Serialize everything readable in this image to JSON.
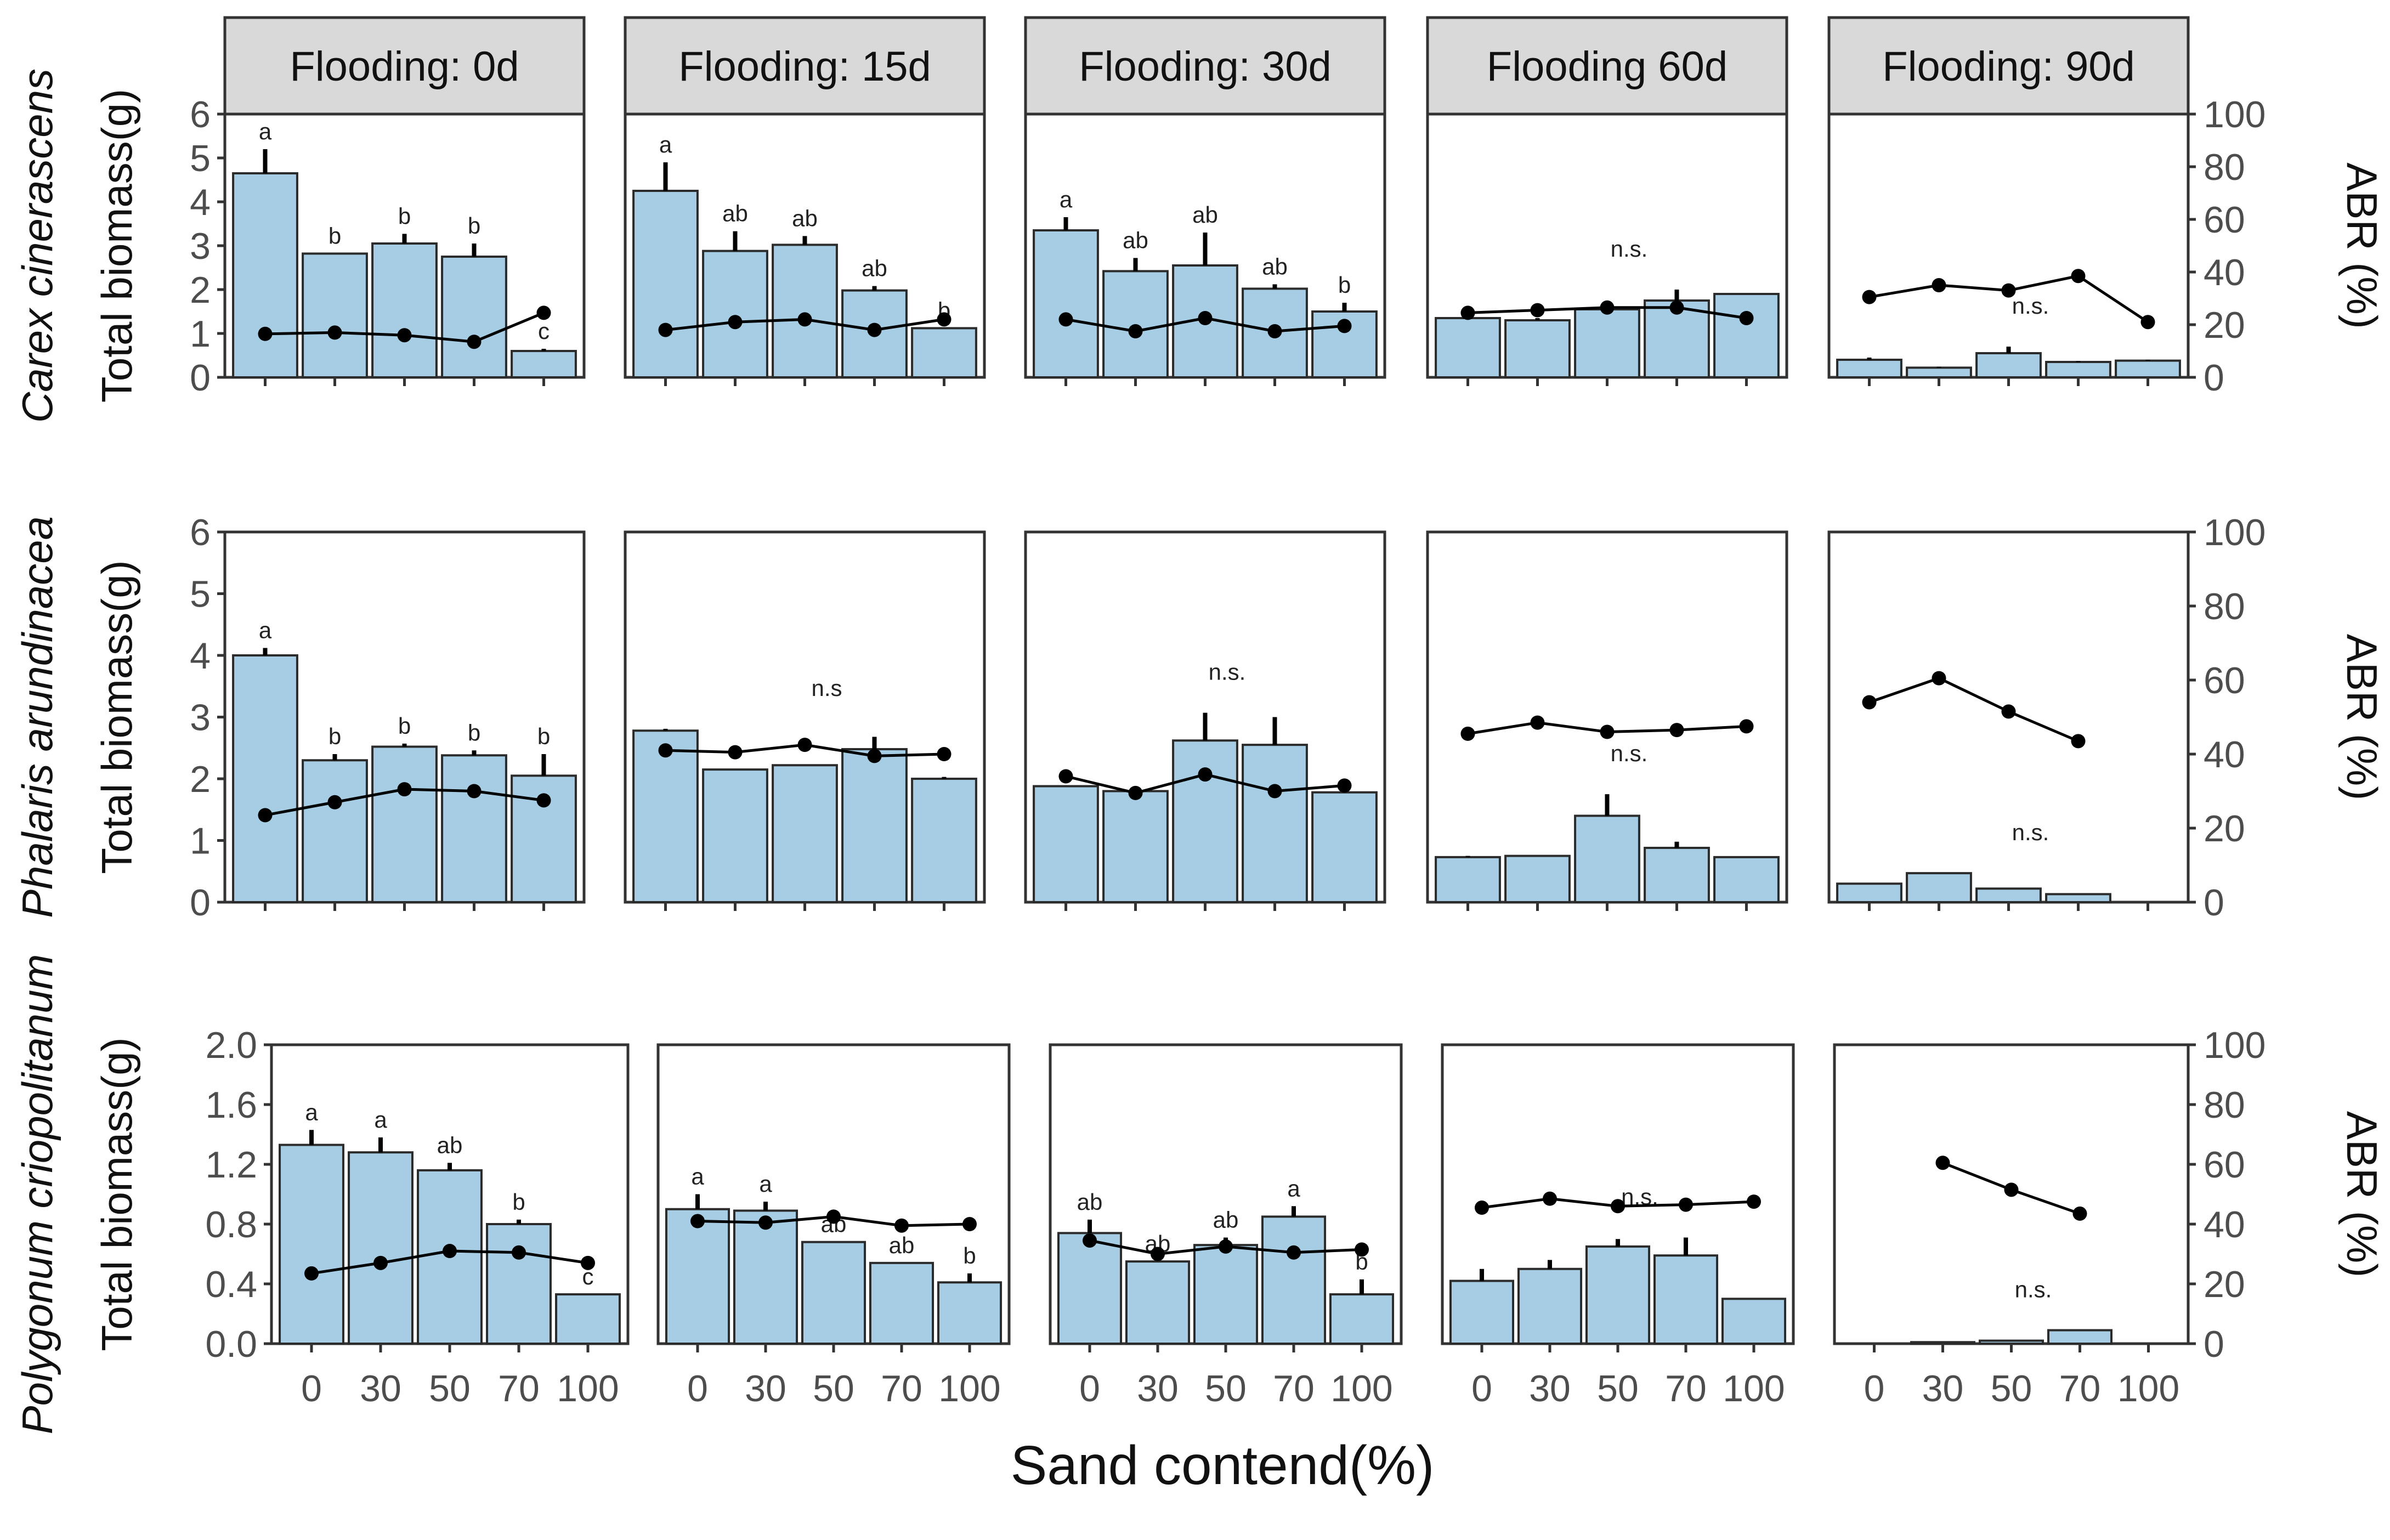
{
  "chart_data": {
    "type": "bar",
    "description_kind": "faceted bar + line chart",
    "xlabel": "Sand contend(%)",
    "categories": [
      "0",
      "30",
      "50",
      "70",
      "100"
    ],
    "colors": {
      "bar_fill": "#a6cde3",
      "bar_stroke": "#2b2b2b",
      "line": "#000000",
      "strip_fill": "#d9d9d9"
    },
    "secondary_axis": {
      "label": "ABR (%)",
      "ylim": [
        0,
        100
      ],
      "ticks": [
        0,
        20,
        40,
        60,
        80,
        100
      ]
    },
    "columns": [
      "Flooding: 0d",
      "Flooding: 15d",
      "Flooding: 30d",
      "Flooding 60d",
      "Flooding: 90d"
    ],
    "rows": [
      {
        "species": "Carex cinerascens",
        "ylabel": "Total biomass(g)",
        "ylim": [
          0,
          6
        ],
        "yticks": [
          "0",
          "1",
          "2",
          "3",
          "4",
          "5",
          "6"
        ],
        "ytick_values": [
          0,
          1,
          2,
          3,
          4,
          5,
          6
        ],
        "panels": [
          {
            "biomass": [
              4.65,
              2.82,
              3.05,
              2.75,
              0.6
            ],
            "errors": [
              0.55,
              0,
              0.22,
              0.3,
              0.05
            ],
            "sig": [
              "a",
              "b",
              "b",
              "b",
              "c"
            ],
            "abr": [
              16.5,
              17,
              16,
              13.5,
              24.5
            ]
          },
          {
            "biomass": [
              4.25,
              2.88,
              3.02,
              1.98,
              1.12
            ],
            "errors": [
              0.65,
              0.45,
              0.2,
              0.1,
              0
            ],
            "sig": [
              "a",
              "ab",
              "ab",
              "ab",
              "b"
            ],
            "abr": [
              18,
              21,
              22,
              18,
              22
            ]
          },
          {
            "biomass": [
              3.35,
              2.42,
              2.55,
              2.02,
              1.5
            ],
            "errors": [
              0.3,
              0.3,
              0.75,
              0.1,
              0.2
            ],
            "sig": [
              "a",
              "ab",
              "ab",
              "ab",
              "b"
            ],
            "abr": [
              22,
              17.5,
              22.5,
              17.5,
              19.5
            ]
          },
          {
            "biomass": [
              1.35,
              1.3,
              1.55,
              1.75,
              1.9
            ],
            "errors": [
              0.15,
              0.05,
              0.05,
              0.25,
              0
            ],
            "sig": [
              "n.s."
            ],
            "abr": [
              24.5,
              25.5,
              26.5,
              26.5,
              22.5
            ]
          },
          {
            "biomass": [
              0.4,
              0.22,
              0.55,
              0.35,
              0.38
            ],
            "errors": [
              0.05,
              0.02,
              0.15,
              0.02,
              0.02
            ],
            "sig": [
              "n.s."
            ],
            "abr": [
              30.5,
              35,
              33,
              38.5,
              21
            ]
          }
        ]
      },
      {
        "species": "Phalaris arundinacea",
        "ylabel": "Total biomass(g)",
        "ylim": [
          0,
          6
        ],
        "yticks": [
          "0",
          "1",
          "2",
          "3",
          "4",
          "5",
          "6"
        ],
        "ytick_values": [
          0,
          1,
          2,
          3,
          4,
          5,
          6
        ],
        "panels": [
          {
            "biomass": [
              4.0,
              2.3,
              2.52,
              2.38,
              2.05
            ],
            "errors": [
              0.12,
              0.1,
              0.05,
              0.08,
              0.35
            ],
            "sig": [
              "a",
              "b",
              "b",
              "b",
              "b"
            ],
            "abr": [
              23.5,
              27,
              30.5,
              30,
              27.5
            ]
          },
          {
            "biomass": [
              2.78,
              2.15,
              2.22,
              2.48,
              2.0
            ],
            "errors": [
              0.03,
              0,
              0,
              0.2,
              0.03
            ],
            "sig": [
              "n.s"
            ],
            "abr": [
              41,
              40.5,
              42.5,
              39.5,
              40
            ]
          },
          {
            "biomass": [
              1.88,
              1.8,
              2.62,
              2.55,
              1.78
            ],
            "errors": [
              0,
              0,
              0.45,
              0.45,
              0
            ],
            "sig": [
              "n.s."
            ],
            "abr": [
              34,
              29.5,
              34.5,
              30,
              31.5
            ]
          },
          {
            "biomass": [
              0.73,
              0.75,
              1.4,
              0.88,
              0.73
            ],
            "errors": [
              0.02,
              0,
              0.35,
              0.1,
              0
            ],
            "sig": [
              "n.s."
            ],
            "abr": [
              45.5,
              48.5,
              46,
              46.5,
              47.5
            ]
          },
          {
            "biomass": [
              0.3,
              0.47,
              0.22,
              0.13,
              0
            ],
            "errors": [
              0,
              0,
              0,
              0,
              0
            ],
            "sig": [
              "n.s."
            ],
            "abr": [
              54,
              60.5,
              51.5,
              43.5,
              null
            ]
          }
        ]
      },
      {
        "species": "Polygonum criopolitanum",
        "ylabel": "Total biomass(g)",
        "ylim": [
          0,
          2
        ],
        "yticks": [
          "0.0",
          "0.4",
          "0.8",
          "1.2",
          "1.6",
          "2.0"
        ],
        "ytick_values": [
          0,
          0.4,
          0.8,
          1.2,
          1.6,
          2.0
        ],
        "panels": [
          {
            "biomass": [
              1.33,
              1.28,
              1.16,
              0.8,
              0.33
            ],
            "errors": [
              0.1,
              0.1,
              0.05,
              0.03,
              0
            ],
            "sig": [
              "a",
              "a",
              "ab",
              "b",
              "c"
            ],
            "abr": [
              23.5,
              27,
              31,
              30.5,
              27
            ]
          },
          {
            "biomass": [
              0.9,
              0.89,
              0.68,
              0.54,
              0.41
            ],
            "errors": [
              0.1,
              0.06,
              0,
              0,
              0.06
            ],
            "sig": [
              "a",
              "a",
              "ab",
              "ab",
              "b"
            ],
            "abr": [
              41,
              40.5,
              42.5,
              39.5,
              40
            ]
          },
          {
            "biomass": [
              0.74,
              0.55,
              0.66,
              0.85,
              0.33
            ],
            "errors": [
              0.09,
              0,
              0.05,
              0.07,
              0.1
            ],
            "sig": [
              "ab",
              "ab",
              "ab",
              "a",
              "b"
            ],
            "abr": [
              34.5,
              30,
              32.5,
              30.5,
              31.5
            ]
          },
          {
            "biomass": [
              0.42,
              0.5,
              0.65,
              0.59,
              0.3
            ],
            "errors": [
              0.08,
              0.06,
              0.05,
              0.12,
              0
            ],
            "sig": [
              "n.s."
            ],
            "abr": [
              45.5,
              48.5,
              46,
              46.5,
              47.5
            ]
          },
          {
            "biomass": [
              0,
              0.01,
              0.02,
              0.09,
              0
            ],
            "errors": [
              0,
              0,
              0,
              0,
              0
            ],
            "sig": [
              "n.s."
            ],
            "abr": [
              null,
              60.5,
              51.5,
              43.5,
              null
            ]
          }
        ]
      }
    ]
  }
}
